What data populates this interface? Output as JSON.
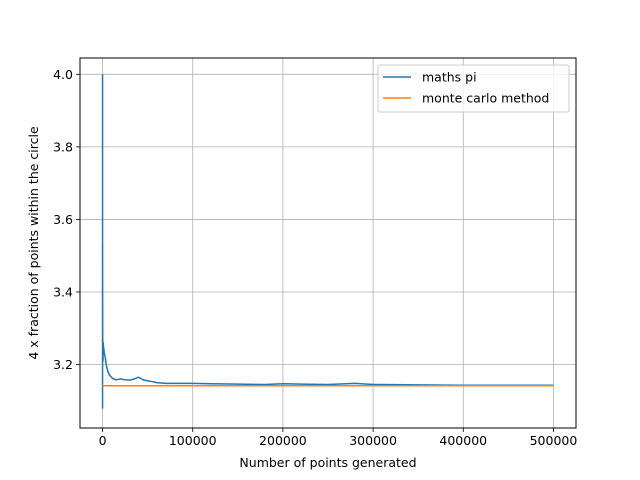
{
  "chart_data": {
    "type": "line",
    "title": "",
    "xlabel": "Number of points generated",
    "ylabel": "4 x fraction of points within the circle",
    "xlim": [
      -25000,
      525000
    ],
    "ylim": [
      3.025,
      4.045
    ],
    "xticks": [
      0,
      100000,
      200000,
      300000,
      400000,
      500000
    ],
    "xtick_labels": [
      "0",
      "100000",
      "200000",
      "300000",
      "400000",
      "500000"
    ],
    "yticks": [
      3.2,
      3.4,
      3.6,
      3.8,
      4.0
    ],
    "ytick_labels": [
      "3.2",
      "3.4",
      "3.6",
      "3.8",
      "4.0"
    ],
    "grid": true,
    "legend_position": "top-right",
    "colors": {
      "series_1": "#1f77b4",
      "series_2": "#ff7f0e"
    },
    "series": [
      {
        "name": "maths pi",
        "x": [
          0,
          10,
          50,
          100,
          150,
          200,
          300,
          400,
          500,
          700,
          1000,
          1500,
          2000,
          3000,
          4000,
          5000,
          6000,
          8000,
          10000,
          12000,
          15000,
          20000,
          25000,
          30000,
          35000,
          40000,
          45000,
          50000,
          55000,
          60000,
          70000,
          80000,
          100000,
          120000,
          150000,
          180000,
          200000,
          220000,
          250000,
          270000,
          280000,
          300000,
          350000,
          400000,
          450000,
          500000
        ],
        "y": [
          4.0,
          3.08,
          3.53,
          3.36,
          3.3,
          3.27,
          3.25,
          3.23,
          3.21,
          3.26,
          3.25,
          3.24,
          3.23,
          3.22,
          3.2,
          3.19,
          3.18,
          3.17,
          3.165,
          3.16,
          3.158,
          3.16,
          3.158,
          3.157,
          3.16,
          3.165,
          3.158,
          3.155,
          3.153,
          3.15,
          3.148,
          3.148,
          3.148,
          3.147,
          3.146,
          3.145,
          3.147,
          3.146,
          3.145,
          3.147,
          3.148,
          3.145,
          3.144,
          3.143,
          3.143,
          3.143
        ]
      },
      {
        "name": "monte carlo method",
        "x": [
          0,
          500000
        ],
        "y": [
          3.14159,
          3.14159
        ]
      }
    ]
  }
}
